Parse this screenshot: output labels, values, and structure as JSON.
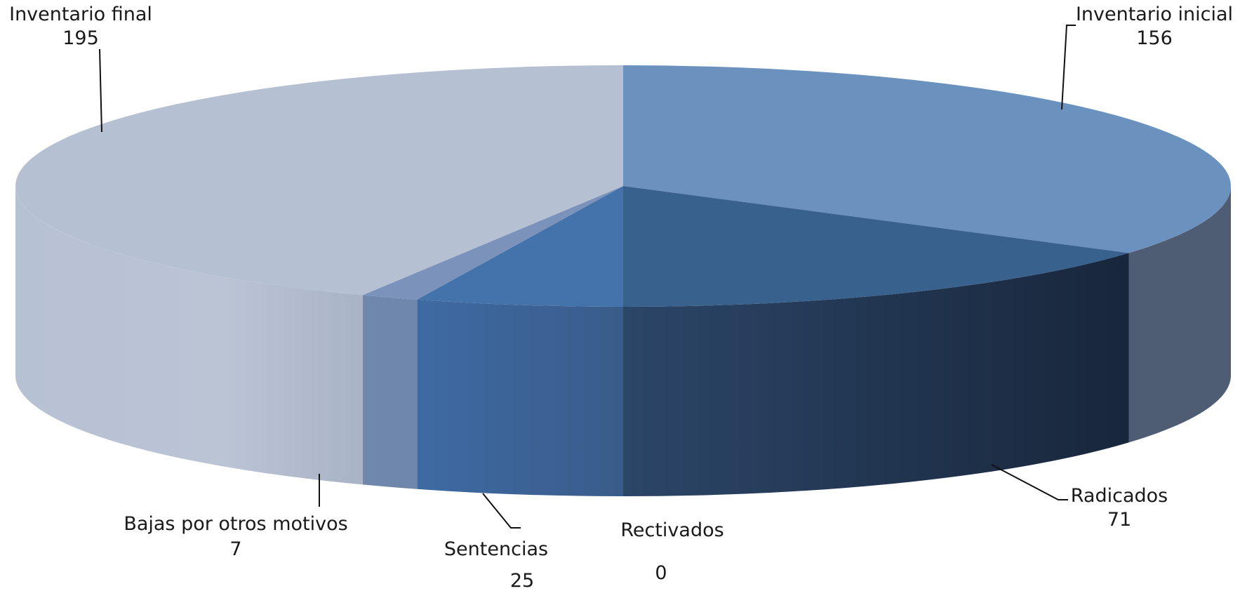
{
  "chart_data": {
    "type": "pie",
    "style": "3d",
    "categories": [
      "Inventario inicial",
      "Radicados",
      "Rectivados",
      "Sentencias",
      "Bajas por otros motivos",
      "Inventario final"
    ],
    "values": [
      156,
      71,
      0,
      25,
      7,
      195
    ],
    "legend": "none",
    "data_labels": "category-and-value",
    "colors": [
      "#6b92bf",
      "#38618e",
      "#4472ab",
      "#4472ab",
      "#7b93ba",
      "#b5c0d3"
    ],
    "side_colors": [
      "#4d5b72",
      "#1a2940",
      "#3a5f90",
      "#3a5f90",
      "#6b84a8",
      "#b9c3d5"
    ]
  }
}
